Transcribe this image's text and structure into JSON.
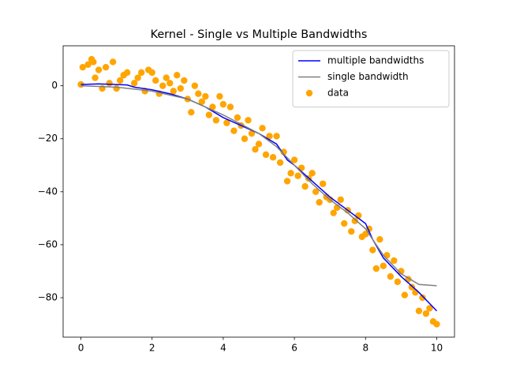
{
  "chart_data": {
    "type": "line-scatter",
    "title": "Kernel - Single vs Multiple Bandwidths",
    "xlim": [
      -0.5,
      10.5
    ],
    "ylim": [
      -94.9,
      15.1
    ],
    "xticks": [
      0,
      2,
      4,
      6,
      8,
      10
    ],
    "yticks": [
      {
        "value": -80,
        "label": "−80"
      },
      {
        "value": -60,
        "label": "−60"
      },
      {
        "value": -40,
        "label": "−40"
      },
      {
        "value": -20,
        "label": "−20"
      },
      0
    ],
    "legend": "upper right",
    "series": [
      {
        "name": "multiple bandwidths",
        "kind": "line",
        "color": "#0000ff",
        "x": [
          0,
          0.5,
          1,
          1.3,
          1.5,
          2,
          2.5,
          3,
          3.5,
          4,
          4.5,
          5,
          5.5,
          5.8,
          6,
          6.5,
          7,
          7.5,
          8,
          8.2,
          8.5,
          9,
          9.5,
          10
        ],
        "values": [
          0.5,
          0.7,
          0.5,
          0.3,
          -0.5,
          -1.5,
          -3,
          -5,
          -8,
          -12,
          -15,
          -18,
          -22,
          -28,
          -30,
          -36,
          -42,
          -47,
          -52,
          -58,
          -65,
          -72,
          -78,
          -85
        ]
      },
      {
        "name": "single bandwidth",
        "kind": "line",
        "color": "#808080",
        "x": [
          0,
          1,
          2,
          3,
          4,
          5,
          5.5,
          6,
          6.5,
          7,
          7.5,
          8,
          8.5,
          9,
          9.5,
          10
        ],
        "values": [
          0,
          -0.5,
          -2,
          -5,
          -11,
          -18,
          -23,
          -30,
          -37,
          -43,
          -48,
          -54,
          -64,
          -71,
          -75,
          -75.5
        ]
      },
      {
        "name": "data",
        "kind": "scatter",
        "color": "#ffa500",
        "x": [
          0,
          0.05,
          0.2,
          0.3,
          0.35,
          0.4,
          0.5,
          0.6,
          0.7,
          0.8,
          0.9,
          1.0,
          1.1,
          1.2,
          1.3,
          1.5,
          1.6,
          1.7,
          1.8,
          1.9,
          2.0,
          2.1,
          2.2,
          2.3,
          2.4,
          2.5,
          2.6,
          2.7,
          2.8,
          2.9,
          3.0,
          3.1,
          3.2,
          3.3,
          3.4,
          3.5,
          3.6,
          3.7,
          3.8,
          3.9,
          4.0,
          4.1,
          4.2,
          4.3,
          4.4,
          4.5,
          4.6,
          4.7,
          4.8,
          4.9,
          5.0,
          5.1,
          5.2,
          5.3,
          5.4,
          5.5,
          5.6,
          5.7,
          5.8,
          5.9,
          6.0,
          6.1,
          6.2,
          6.3,
          6.4,
          6.5,
          6.6,
          6.7,
          6.8,
          6.9,
          7.0,
          7.1,
          7.2,
          7.3,
          7.4,
          7.5,
          7.6,
          7.7,
          7.8,
          7.9,
          8.0,
          8.1,
          8.2,
          8.3,
          8.4,
          8.5,
          8.6,
          8.7,
          8.8,
          8.9,
          9.0,
          9.1,
          9.2,
          9.3,
          9.4,
          9.5,
          9.6,
          9.7,
          9.8,
          9.9,
          10.0
        ],
        "values": [
          0.5,
          7,
          8,
          10,
          9,
          3,
          6,
          -1,
          7,
          1,
          9,
          -1,
          2,
          4,
          5,
          1,
          3,
          5,
          -2,
          6,
          5,
          2,
          -3,
          0,
          3,
          1,
          -2,
          4,
          -1,
          2,
          -5,
          -10,
          0,
          -3,
          -6,
          -4,
          -11,
          -8,
          -13,
          -4,
          -7,
          -14,
          -8,
          -17,
          -12,
          -15,
          -20,
          -13,
          -18,
          -24,
          -22,
          -16,
          -26,
          -19,
          -27,
          -19,
          -29,
          -25,
          -36,
          -33,
          -28,
          -34,
          -31,
          -38,
          -35,
          -33,
          -40,
          -44,
          -37,
          -42,
          -43,
          -48,
          -46,
          -43,
          -52,
          -47,
          -55,
          -51,
          -49,
          -57,
          -56,
          -54,
          -62,
          -69,
          -58,
          -68,
          -64,
          -72,
          -66,
          -74,
          -70,
          -79,
          -73,
          -76,
          -78,
          -85,
          -80,
          -86,
          -84,
          -89,
          -90
        ]
      }
    ]
  }
}
